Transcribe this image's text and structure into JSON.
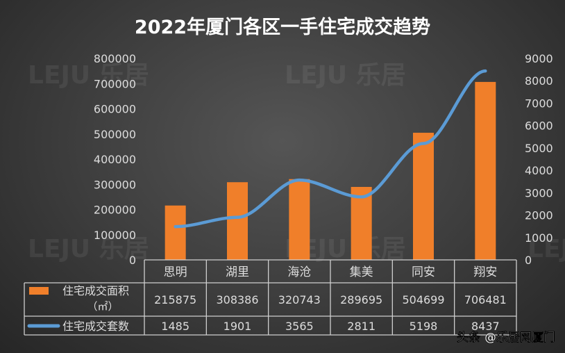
{
  "chart_data": {
    "type": "bar+line",
    "title": "2022年厦门各区一手住宅成交趋势",
    "categories": [
      "思明",
      "湖里",
      "海沧",
      "集美",
      "同安",
      "翔安"
    ],
    "series": [
      {
        "name": "住宅成交面积（㎡）",
        "type": "bar",
        "axis": "left",
        "color": "#f07f2a",
        "values": [
          215875,
          308386,
          320743,
          289695,
          504699,
          706481
        ]
      },
      {
        "name": "住宅成交套数",
        "type": "line",
        "axis": "right",
        "color": "#5b9bd5",
        "values": [
          1485,
          1901,
          3565,
          2811,
          5198,
          8437
        ]
      }
    ],
    "left_axis": {
      "range": [
        0,
        800000
      ],
      "ticks": [
        0,
        100000,
        200000,
        300000,
        400000,
        500000,
        600000,
        700000,
        800000
      ]
    },
    "right_axis": {
      "range": [
        0,
        9000
      ],
      "ticks": [
        0,
        1000,
        2000,
        3000,
        4000,
        5000,
        6000,
        7000,
        8000,
        9000
      ]
    },
    "legend_placement": "data-table",
    "grid": false
  },
  "watermark": "LEJU 乐居",
  "credit": "头条 @乐居网厦门"
}
